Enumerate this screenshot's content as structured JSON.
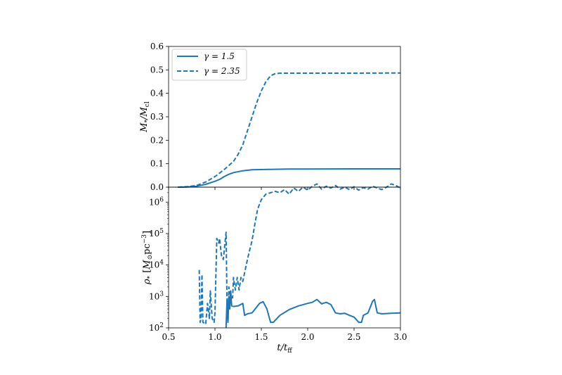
{
  "colors": {
    "series": "#1f77b4",
    "axes": "#000000",
    "background": "#ffffff"
  },
  "chart_data": [
    {
      "type": "line",
      "panel": "top",
      "ylabel": "M_*/M_cl",
      "ylim": [
        0.0,
        0.6
      ],
      "xlim": [
        0.5,
        3.0
      ],
      "y_ticks": [
        "0.0",
        "0.1",
        "0.2",
        "0.3",
        "0.4",
        "0.5",
        "0.6"
      ],
      "y_tick_values": [
        0.0,
        0.1,
        0.2,
        0.3,
        0.4,
        0.5,
        0.6
      ],
      "legend": {
        "placement": "top-left",
        "entries": [
          "γ = 1.5",
          "γ = 2.35"
        ]
      },
      "series": [
        {
          "name": "γ = 1.5",
          "style": "solid",
          "points": [
            [
              0.6,
              0.0
            ],
            [
              0.7,
              0.001
            ],
            [
              0.8,
              0.004
            ],
            [
              0.9,
              0.012
            ],
            [
              1.0,
              0.025
            ],
            [
              1.05,
              0.033
            ],
            [
              1.1,
              0.045
            ],
            [
              1.15,
              0.055
            ],
            [
              1.2,
              0.062
            ],
            [
              1.3,
              0.07
            ],
            [
              1.4,
              0.074
            ],
            [
              1.5,
              0.075
            ],
            [
              1.6,
              0.076
            ],
            [
              1.8,
              0.077
            ],
            [
              2.0,
              0.077
            ],
            [
              2.5,
              0.078
            ],
            [
              3.0,
              0.078
            ]
          ]
        },
        {
          "name": "γ = 2.35",
          "style": "dashed",
          "points": [
            [
              0.6,
              0.0
            ],
            [
              0.7,
              0.002
            ],
            [
              0.8,
              0.007
            ],
            [
              0.9,
              0.022
            ],
            [
              1.0,
              0.045
            ],
            [
              1.1,
              0.075
            ],
            [
              1.2,
              0.11
            ],
            [
              1.25,
              0.14
            ],
            [
              1.3,
              0.18
            ],
            [
              1.35,
              0.24
            ],
            [
              1.4,
              0.3
            ],
            [
              1.45,
              0.36
            ],
            [
              1.5,
              0.41
            ],
            [
              1.55,
              0.45
            ],
            [
              1.6,
              0.475
            ],
            [
              1.65,
              0.484
            ],
            [
              1.7,
              0.486
            ],
            [
              2.0,
              0.486
            ],
            [
              2.5,
              0.486
            ],
            [
              3.0,
              0.487
            ]
          ]
        }
      ]
    },
    {
      "type": "line",
      "panel": "bottom",
      "ylabel": "ρ_* [M_⊙ pc^-3]",
      "yscale": "log",
      "ylim": [
        100,
        3000000
      ],
      "xlim": [
        0.5,
        3.0
      ],
      "xlabel": "t/t_ff",
      "x_ticks": [
        "0.5",
        "1.0",
        "1.5",
        "2.0",
        "2.5",
        "3.0"
      ],
      "x_tick_values": [
        0.5,
        1.0,
        1.5,
        2.0,
        2.5,
        3.0
      ],
      "y_ticks": [
        "10^2",
        "10^3",
        "10^4",
        "10^5",
        "10^6"
      ],
      "y_tick_values": [
        100,
        1000,
        10000,
        100000,
        1000000
      ],
      "series": [
        {
          "name": "γ = 1.5",
          "style": "solid",
          "points": [
            [
              1.12,
              100
            ],
            [
              1.13,
              800
            ],
            [
              1.14,
              150
            ],
            [
              1.15,
              1000
            ],
            [
              1.16,
              400
            ],
            [
              1.17,
              1500
            ],
            [
              1.18,
              500
            ],
            [
              1.2,
              480
            ],
            [
              1.25,
              500
            ],
            [
              1.3,
              600
            ],
            [
              1.32,
              250
            ],
            [
              1.35,
              280
            ],
            [
              1.4,
              300
            ],
            [
              1.48,
              600
            ],
            [
              1.52,
              680
            ],
            [
              1.56,
              400
            ],
            [
              1.6,
              150
            ],
            [
              1.63,
              150
            ],
            [
              1.7,
              250
            ],
            [
              1.8,
              380
            ],
            [
              1.9,
              500
            ],
            [
              2.0,
              600
            ],
            [
              2.05,
              650
            ],
            [
              2.1,
              800
            ],
            [
              2.15,
              580
            ],
            [
              2.2,
              650
            ],
            [
              2.25,
              550
            ],
            [
              2.3,
              300
            ],
            [
              2.35,
              280
            ],
            [
              2.4,
              290
            ],
            [
              2.45,
              250
            ],
            [
              2.5,
              220
            ],
            [
              2.55,
              150
            ],
            [
              2.58,
              150
            ],
            [
              2.6,
              250
            ],
            [
              2.65,
              300
            ],
            [
              2.7,
              700
            ],
            [
              2.72,
              800
            ],
            [
              2.75,
              300
            ],
            [
              2.8,
              280
            ],
            [
              2.9,
              290
            ],
            [
              3.0,
              300
            ]
          ]
        },
        {
          "name": "γ = 2.35",
          "style": "dashed",
          "points": [
            [
              0.83,
              7000
            ],
            [
              0.84,
              150
            ],
            [
              0.85,
              200
            ],
            [
              0.86,
              5000
            ],
            [
              0.87,
              150
            ],
            [
              0.9,
              130
            ],
            [
              0.92,
              600
            ],
            [
              0.94,
              200
            ],
            [
              0.95,
              1500
            ],
            [
              0.97,
              200
            ],
            [
              0.99,
              150
            ],
            [
              1.0,
              300
            ],
            [
              1.02,
              70000
            ],
            [
              1.04,
              50000
            ],
            [
              1.05,
              70000
            ],
            [
              1.07,
              20000
            ],
            [
              1.09,
              15000
            ],
            [
              1.12,
              110000
            ],
            [
              1.13,
              600
            ],
            [
              1.14,
              150
            ],
            [
              1.15,
              2000
            ],
            [
              1.17,
              1000
            ],
            [
              1.19,
              900
            ],
            [
              1.2,
              4000
            ],
            [
              1.22,
              1600
            ],
            [
              1.24,
              4000
            ],
            [
              1.26,
              1600
            ],
            [
              1.28,
              4000
            ],
            [
              1.3,
              3000
            ],
            [
              1.33,
              8000
            ],
            [
              1.36,
              20000
            ],
            [
              1.4,
              60000
            ],
            [
              1.43,
              200000
            ],
            [
              1.46,
              600000
            ],
            [
              1.5,
              1200000
            ],
            [
              1.55,
              1800000
            ],
            [
              1.6,
              2000000
            ],
            [
              1.65,
              2200000
            ],
            [
              1.7,
              2000000
            ],
            [
              1.75,
              2500000
            ],
            [
              1.8,
              1800000
            ],
            [
              1.85,
              2800000
            ],
            [
              1.9,
              2200000
            ],
            [
              1.95,
              3000000
            ],
            [
              2.0,
              2400000
            ],
            [
              2.05,
              3200000
            ],
            [
              2.1,
              3800000
            ],
            [
              2.15,
              2600000
            ],
            [
              2.2,
              3200000
            ],
            [
              2.25,
              2800000
            ],
            [
              2.3,
              3400000
            ],
            [
              2.35,
              2600000
            ],
            [
              2.4,
              3000000
            ],
            [
              2.45,
              2500000
            ],
            [
              2.5,
              3100000
            ],
            [
              2.55,
              2400000
            ],
            [
              2.6,
              2900000
            ],
            [
              2.65,
              2600000
            ],
            [
              2.7,
              3200000
            ],
            [
              2.75,
              2800000
            ],
            [
              2.8,
              2500000
            ],
            [
              2.85,
              3000000
            ],
            [
              2.9,
              3800000
            ],
            [
              2.95,
              3400000
            ],
            [
              3.0,
              2800000
            ]
          ]
        }
      ]
    }
  ]
}
